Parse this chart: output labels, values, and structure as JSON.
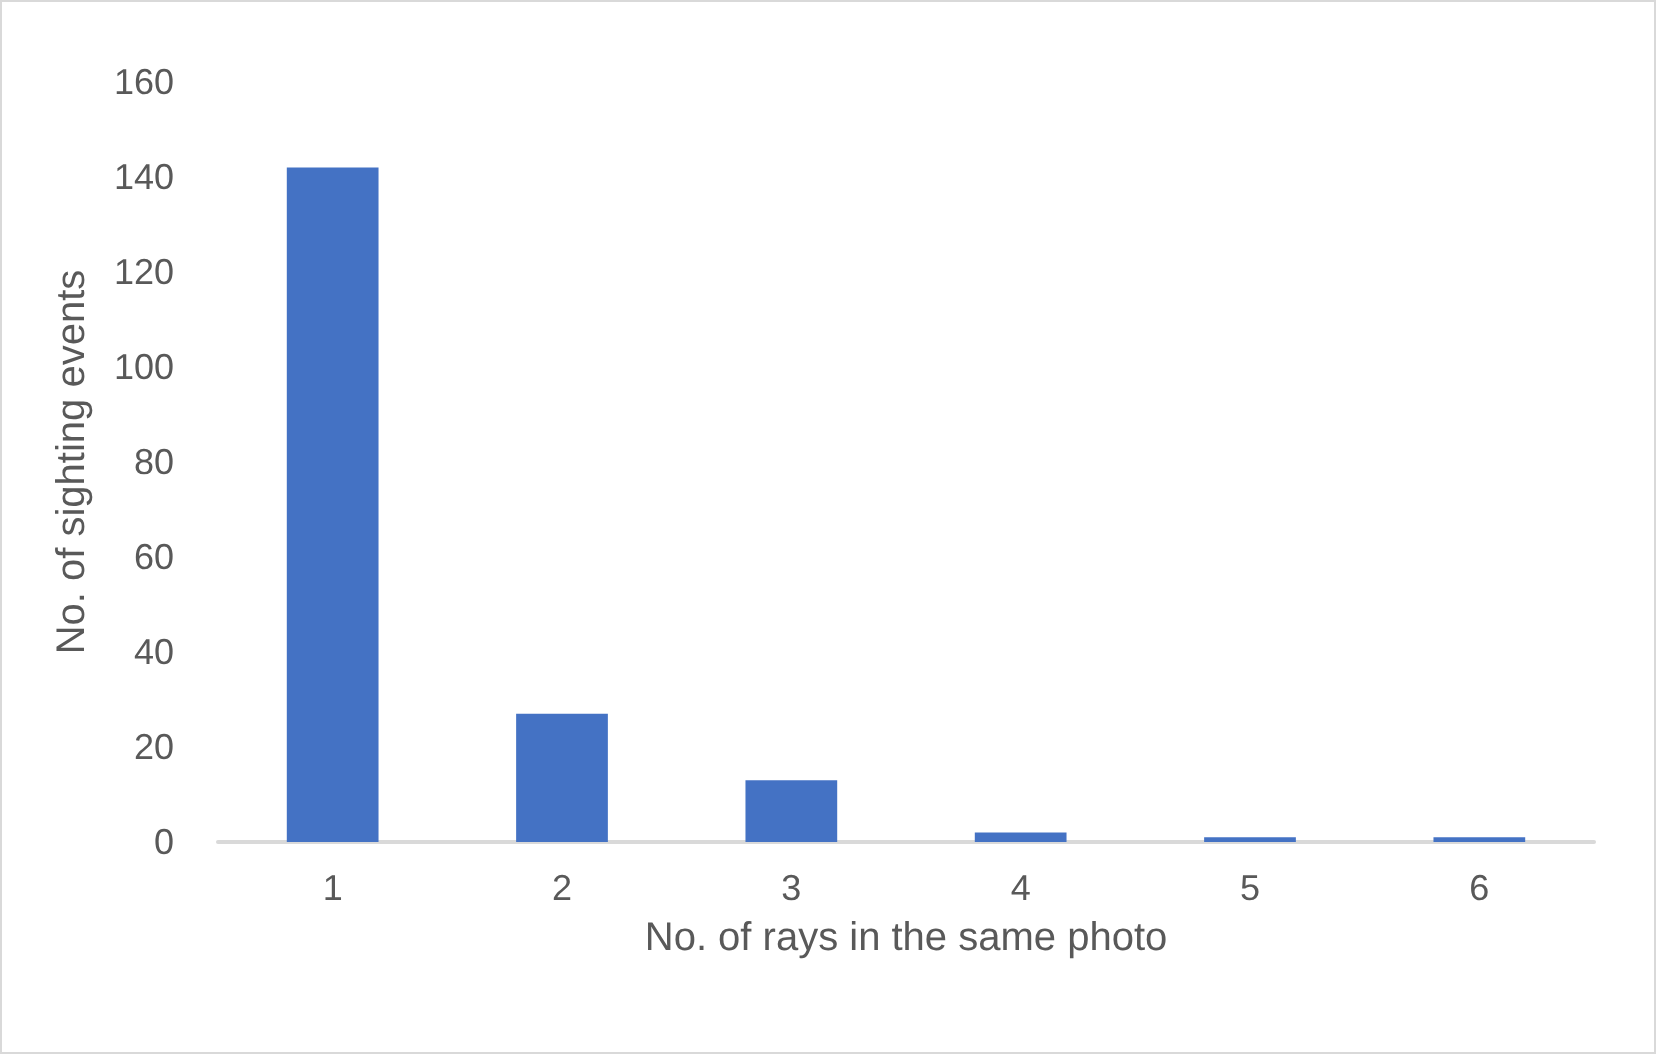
{
  "chart_data": {
    "type": "bar",
    "xlabel": "No. of rays in the same photo",
    "ylabel": "No. of sighting events",
    "categories": [
      "1",
      "2",
      "3",
      "4",
      "5",
      "6"
    ],
    "values": [
      142,
      27,
      13,
      2,
      1,
      1
    ],
    "color": "#4472c4",
    "ylim": [
      0,
      160
    ],
    "yticks": [
      0,
      20,
      40,
      60,
      80,
      100,
      120,
      140,
      160
    ],
    "grid": false
  }
}
